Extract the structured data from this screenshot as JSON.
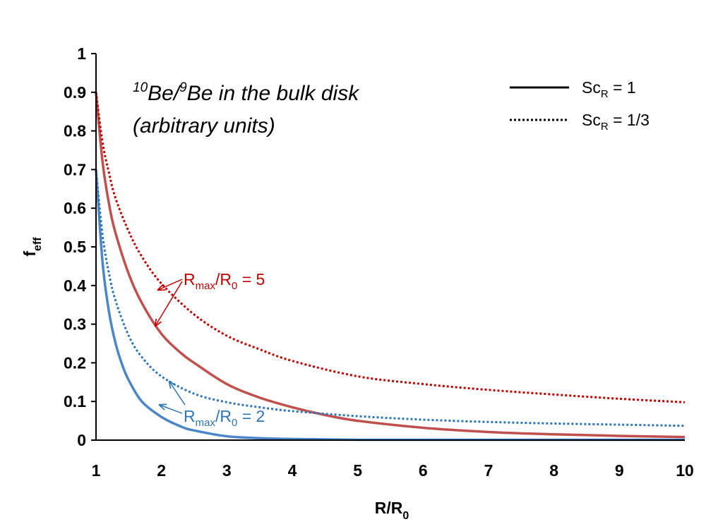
{
  "chart_data": {
    "type": "line",
    "title": "",
    "xlabel": {
      "main": "R/R",
      "sub": "0"
    },
    "ylabel": {
      "main": "f",
      "sub": "eff"
    },
    "xlim": [
      1,
      10
    ],
    "ylim": [
      0,
      1
    ],
    "x_ticks": [
      "1",
      "2",
      "3",
      "4",
      "5",
      "6",
      "7",
      "8",
      "9",
      "10"
    ],
    "y_ticks": [
      "0",
      "0.1",
      "0.2",
      "0.3",
      "0.4",
      "0.5",
      "0.6",
      "0.7",
      "0.8",
      "0.9",
      "1"
    ],
    "grid": false,
    "inset_text": {
      "line1_sup1": "10",
      "line1_part1": "Be/",
      "line1_sup2": "9",
      "line1_part2": "Be in the bulk disk",
      "line2": "(arbitrary units)"
    },
    "legend": {
      "position": "top-right",
      "entries": [
        {
          "style": "solid",
          "label_main": "Sc",
          "label_sub": "R",
          "label_rest": " = 1"
        },
        {
          "style": "dotted",
          "label_main": "Sc",
          "label_sub": "R",
          "label_rest": " = 1/3"
        }
      ]
    },
    "annotations": [
      {
        "color": "#c00000",
        "pre": "R",
        "sub1": "max",
        "mid": "/R",
        "sub2": "0",
        "post": " = 5"
      },
      {
        "color": "#2e75b6",
        "pre": "R",
        "sub1": "max",
        "mid": "/R",
        "sub2": "0",
        "post": " = 2"
      }
    ],
    "series": [
      {
        "color": "#c0504d",
        "dash": "solid",
        "x": [
          1,
          1.1,
          1.2,
          1.3,
          1.5,
          1.7,
          2,
          2.3,
          2.5,
          3,
          3.5,
          4,
          4.5,
          5,
          6,
          7,
          8,
          9,
          10
        ],
        "y": [
          0.9,
          0.72,
          0.61,
          0.535,
          0.43,
          0.355,
          0.275,
          0.225,
          0.2,
          0.145,
          0.11,
          0.085,
          0.065,
          0.05,
          0.032,
          0.021,
          0.015,
          0.011,
          0.008
        ]
      },
      {
        "color": "#c00000",
        "dash": "dotted",
        "x": [
          1,
          1.1,
          1.2,
          1.3,
          1.5,
          1.7,
          2,
          2.5,
          3,
          3.5,
          4,
          5,
          6,
          7,
          8,
          9,
          10
        ],
        "y": [
          0.9,
          0.77,
          0.69,
          0.625,
          0.54,
          0.475,
          0.405,
          0.325,
          0.27,
          0.235,
          0.205,
          0.165,
          0.145,
          0.13,
          0.118,
          0.107,
          0.098
        ]
      },
      {
        "color": "#4a86c8",
        "dash": "solid",
        "x": [
          1,
          1.1,
          1.2,
          1.3,
          1.4,
          1.5,
          1.7,
          2,
          2.3,
          2.5,
          3,
          3.5,
          4,
          5,
          6,
          7,
          8,
          9,
          10
        ],
        "y": [
          0.7,
          0.46,
          0.33,
          0.25,
          0.195,
          0.155,
          0.1,
          0.06,
          0.035,
          0.025,
          0.01,
          0.005,
          0.003,
          0.001,
          0.001,
          0.001,
          0.001,
          0.001,
          0.001
        ]
      },
      {
        "color": "#2e75b6",
        "dash": "dotted",
        "x": [
          1,
          1.1,
          1.2,
          1.3,
          1.5,
          1.7,
          2,
          2.5,
          3,
          3.5,
          4,
          5,
          6,
          7,
          8,
          9,
          10
        ],
        "y": [
          0.7,
          0.53,
          0.43,
          0.36,
          0.27,
          0.215,
          0.165,
          0.12,
          0.098,
          0.085,
          0.075,
          0.062,
          0.053,
          0.047,
          0.043,
          0.04,
          0.037
        ]
      }
    ]
  }
}
